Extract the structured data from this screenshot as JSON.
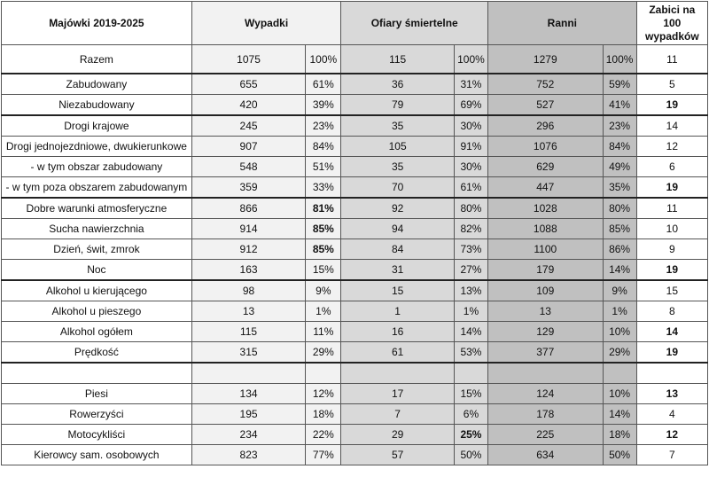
{
  "table": {
    "header": [
      "Majówki 2019-2025",
      "Wypadki",
      "Ofiary śmiertelne",
      "Ranni",
      "Zabici na 100 wypadków"
    ],
    "rows": [
      {
        "label": "Razem",
        "cells": [
          1075,
          "100%",
          115,
          "100%",
          1279,
          "100%",
          11
        ],
        "bold": []
      },
      {
        "label": "Zabudowany",
        "cells": [
          655,
          "61%",
          36,
          "31%",
          752,
          "59%",
          5
        ],
        "bold": []
      },
      {
        "label": "Niezabudowany",
        "cells": [
          420,
          "39%",
          79,
          "69%",
          527,
          "41%",
          19
        ],
        "bold": [
          6
        ]
      },
      {
        "label": "Drogi krajowe",
        "cells": [
          245,
          "23%",
          35,
          "30%",
          296,
          "23%",
          14
        ],
        "bold": []
      },
      {
        "label": "Drogi jednojezdniowe, dwukierunkowe",
        "cells": [
          907,
          "84%",
          105,
          "91%",
          1076,
          "84%",
          12
        ],
        "bold": []
      },
      {
        "label": "- w tym obszar zabudowany",
        "cells": [
          548,
          "51%",
          35,
          "30%",
          629,
          "49%",
          6
        ],
        "bold": []
      },
      {
        "label": "- w tym poza obszarem zabudowanym",
        "cells": [
          359,
          "33%",
          70,
          "61%",
          447,
          "35%",
          19
        ],
        "bold": [
          6
        ]
      },
      {
        "label": "Dobre warunki atmosferyczne",
        "cells": [
          866,
          "81%",
          92,
          "80%",
          1028,
          "80%",
          11
        ],
        "bold": [
          1
        ]
      },
      {
        "label": "Sucha nawierzchnia",
        "cells": [
          914,
          "85%",
          94,
          "82%",
          1088,
          "85%",
          10
        ],
        "bold": [
          1
        ]
      },
      {
        "label": "Dzień, świt, zmrok",
        "cells": [
          912,
          "85%",
          84,
          "73%",
          1100,
          "86%",
          9
        ],
        "bold": [
          1
        ]
      },
      {
        "label": "Noc",
        "cells": [
          163,
          "15%",
          31,
          "27%",
          179,
          "14%",
          19
        ],
        "bold": [
          6
        ]
      },
      {
        "label": "Alkohol u kierującego",
        "cells": [
          98,
          "9%",
          15,
          "13%",
          109,
          "9%",
          15
        ],
        "bold": []
      },
      {
        "label": "Alkohol u pieszego",
        "cells": [
          13,
          "1%",
          1,
          "1%",
          13,
          "1%",
          8
        ],
        "bold": []
      },
      {
        "label": "Alkohol ogółem",
        "cells": [
          115,
          "11%",
          16,
          "14%",
          129,
          "10%",
          14
        ],
        "bold": [
          6
        ]
      },
      {
        "label": "Prędkość",
        "cells": [
          315,
          "29%",
          61,
          "53%",
          377,
          "29%",
          19
        ],
        "bold": [
          6
        ]
      },
      null,
      {
        "label": "Piesi",
        "cells": [
          134,
          "12%",
          17,
          "15%",
          124,
          "10%",
          13
        ],
        "bold": [
          6
        ]
      },
      {
        "label": "Rowerzyści",
        "cells": [
          195,
          "18%",
          7,
          "6%",
          178,
          "14%",
          4
        ],
        "bold": []
      },
      {
        "label": "Motocykliści",
        "cells": [
          234,
          "22%",
          29,
          "25%",
          225,
          "18%",
          12
        ],
        "bold": [
          3,
          6
        ]
      },
      {
        "label": "Kierowcy sam. osobowych",
        "cells": [
          823,
          "77%",
          57,
          "50%",
          634,
          "50%",
          7
        ],
        "bold": []
      }
    ]
  }
}
